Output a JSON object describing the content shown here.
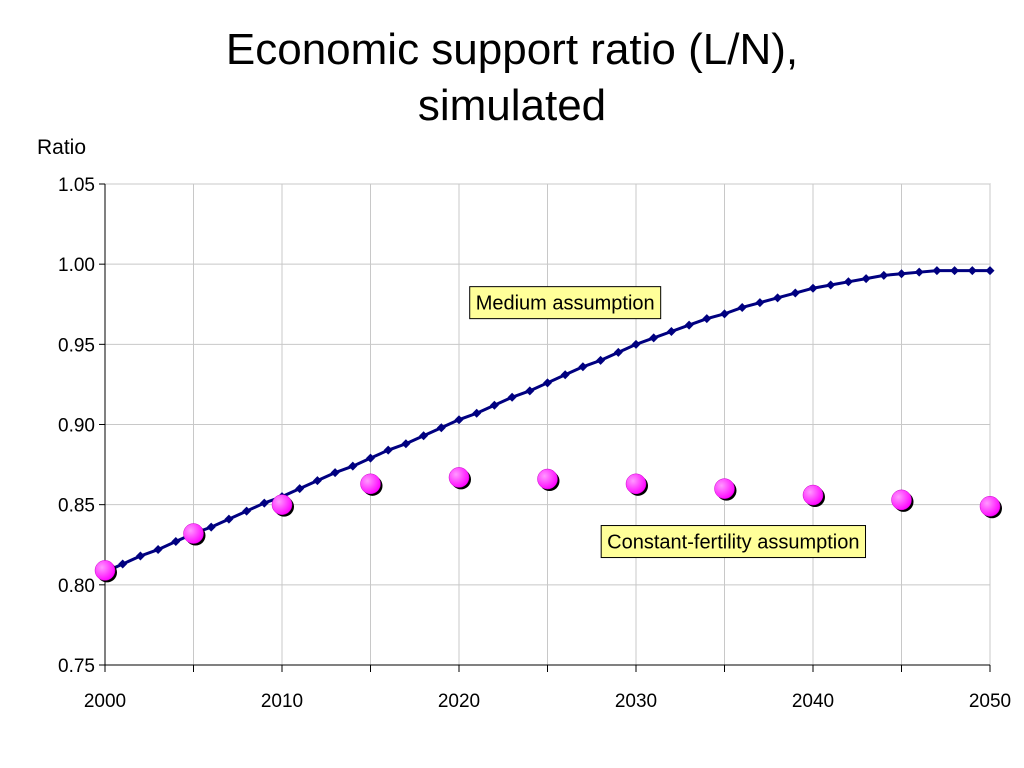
{
  "chart_data": {
    "type": "line",
    "title": [
      "Economic support ratio (L/N),",
      "simulated"
    ],
    "ylabel": "Ratio",
    "xlabel": "",
    "xlim": [
      2000,
      2050
    ],
    "ylim": [
      0.75,
      1.05
    ],
    "x_ticks": [
      2000,
      2010,
      2020,
      2030,
      2040,
      2050
    ],
    "x_minor_ticks": [
      2005,
      2015,
      2025,
      2035,
      2045
    ],
    "y_ticks": [
      "0.75",
      "0.80",
      "0.85",
      "0.90",
      "0.95",
      "1.00",
      "1.05"
    ],
    "grid": true,
    "series": [
      {
        "name": "Medium assumption",
        "style": "line-diamond",
        "color": "#000080",
        "x": [
          2000,
          2001,
          2002,
          2003,
          2004,
          2005,
          2006,
          2007,
          2008,
          2009,
          2010,
          2011,
          2012,
          2013,
          2014,
          2015,
          2016,
          2017,
          2018,
          2019,
          2020,
          2021,
          2022,
          2023,
          2024,
          2025,
          2026,
          2027,
          2028,
          2029,
          2030,
          2031,
          2032,
          2033,
          2034,
          2035,
          2036,
          2037,
          2038,
          2039,
          2040,
          2041,
          2042,
          2043,
          2044,
          2045,
          2046,
          2047,
          2048,
          2049,
          2050
        ],
        "y": [
          0.808,
          0.813,
          0.818,
          0.822,
          0.827,
          0.832,
          0.836,
          0.841,
          0.846,
          0.851,
          0.855,
          0.86,
          0.865,
          0.87,
          0.874,
          0.879,
          0.884,
          0.888,
          0.893,
          0.898,
          0.903,
          0.907,
          0.912,
          0.917,
          0.921,
          0.926,
          0.931,
          0.936,
          0.94,
          0.945,
          0.95,
          0.954,
          0.958,
          0.962,
          0.966,
          0.969,
          0.973,
          0.976,
          0.979,
          0.982,
          0.985,
          0.987,
          0.989,
          0.991,
          0.993,
          0.994,
          0.995,
          0.996,
          0.996,
          0.996,
          0.996
        ]
      },
      {
        "name": "Constant-fertility assumption",
        "style": "marker-circle",
        "color": "#ff00ff",
        "x": [
          2000,
          2005,
          2010,
          2015,
          2020,
          2025,
          2030,
          2035,
          2040,
          2045,
          2050
        ],
        "y": [
          0.809,
          0.832,
          0.85,
          0.863,
          0.867,
          0.866,
          0.863,
          0.86,
          0.856,
          0.853,
          0.849
        ]
      }
    ],
    "annotations": [
      {
        "text": "Medium assumption",
        "x": 2026,
        "y": 0.976
      },
      {
        "text": "Constant-fertility assumption",
        "x": 2035.5,
        "y": 0.827
      }
    ],
    "annotation_bg": "#ffff99"
  }
}
